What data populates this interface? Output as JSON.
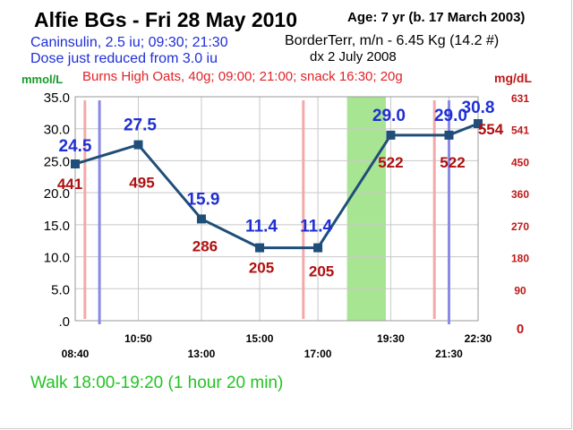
{
  "header": {
    "title": "Alfie BGs - Fri 28 May 2010",
    "age": "Age: 7  yr (b. 17 March 2003)",
    "insulin_line1": "Caninsulin, 2.5 iu; 09:30; 21:30",
    "insulin_line2": "Dose just reduced from 3.0 iu",
    "dog_info": "BorderTerr, m/n - 6.45 Kg (14.2 #)",
    "diagnosis": "dx 2 July 2008",
    "food": "Burns High Oats, 40g; 09:00; 21:00; snack 16:30; 20g"
  },
  "footer": {
    "walk": "Walk 18:00-19:20 (1 hour 20 min)"
  },
  "colors": {
    "line": "#1f4e79",
    "mmol_label": "#1f2fd6",
    "mgdl_label": "#b01010",
    "food_marker": "#f4a8a8",
    "insulin_marker": "#8a8ae6",
    "walk_band": "#99e07f",
    "grid": "#c8c8c8"
  },
  "chart_data": {
    "type": "line",
    "x_time_labels_lower": [
      "08:40",
      "13:00",
      "17:00",
      "21:30"
    ],
    "x_time_labels_upper": [
      "10:50",
      "15:00",
      "19:30",
      "22:30"
    ],
    "x": [
      "08:40",
      "10:50",
      "13:00",
      "15:00",
      "17:00",
      "19:30",
      "21:30",
      "22:30"
    ],
    "series": [
      {
        "values_mmol": [
          24.5,
          27.5,
          15.9,
          11.4,
          11.4,
          29.0,
          29.0,
          30.8
        ],
        "labels_mmol": [
          "24.5",
          "27.5",
          "15.9",
          "11.4",
          "11.4",
          "29.0",
          "29.0",
          "30.8"
        ],
        "values_mgdl": [
          441,
          495,
          286,
          205,
          205,
          522,
          522,
          554
        ],
        "labels_mgdl": [
          "441",
          "495",
          "286",
          "205",
          "205",
          "522",
          "522",
          "554"
        ]
      }
    ],
    "ylabel_left": "mmol/L",
    "ylabel_right": "mg/dL",
    "ylim_mmol": [
      0,
      35
    ],
    "ylim_mgdl": [
      0,
      631
    ],
    "y_ticks_left": [
      ".0",
      "5.0",
      "10.0",
      "15.0",
      "20.0",
      "25.0",
      "30.0",
      "35.0"
    ],
    "y_ticks_right": [
      "0",
      "90",
      "180",
      "270",
      "360",
      "450",
      "541",
      "631"
    ],
    "grid": true,
    "markers": {
      "food_times": [
        "09:00",
        "16:30",
        "21:00"
      ],
      "insulin_times": [
        "09:30",
        "21:30"
      ],
      "walk_band": [
        "18:00",
        "19:20"
      ]
    }
  }
}
